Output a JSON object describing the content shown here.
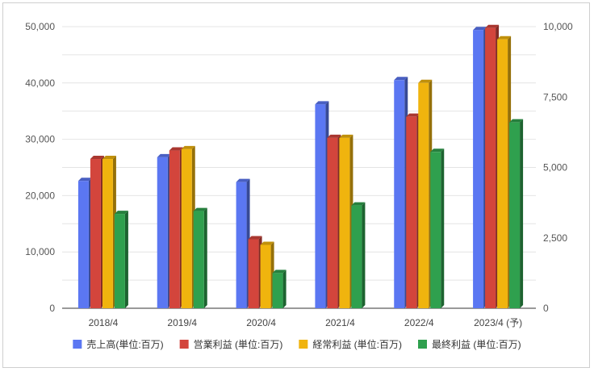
{
  "chart_data": {
    "type": "bar",
    "categories": [
      "2018/4",
      "2019/4",
      "2020/4",
      "2021/4",
      "2022/4",
      "2023/4 (予)"
    ],
    "series": [
      {
        "name": "売上高(単位:百万)",
        "axis": "left",
        "color": "#5B77F2",
        "values": [
          22600,
          26800,
          22400,
          36200,
          40500,
          49400
        ]
      },
      {
        "name": "営業利益 (単位:百万)",
        "axis": "right",
        "color": "#D3453C",
        "values": [
          5300,
          5600,
          2450,
          6050,
          6800,
          9950
        ]
      },
      {
        "name": "経常利益 (単位:百万)",
        "axis": "right",
        "color": "#F0B40E",
        "values": [
          5300,
          5650,
          2250,
          6050,
          8000,
          9550
        ]
      },
      {
        "name": "最終利益 (単位:百万)",
        "axis": "right",
        "color": "#2FA04E",
        "values": [
          3350,
          3450,
          1250,
          3650,
          5550,
          6600
        ]
      }
    ],
    "y_left": {
      "range": [
        0,
        50000
      ],
      "ticks": [
        "0",
        "10,000",
        "20,000",
        "30,000",
        "40,000",
        "50,000"
      ]
    },
    "y_right": {
      "range": [
        0,
        10000
      ],
      "ticks": [
        "0",
        "2,500",
        "5,000",
        "7,500",
        "10,000"
      ]
    },
    "legend_position": "bottom",
    "grid": true
  }
}
